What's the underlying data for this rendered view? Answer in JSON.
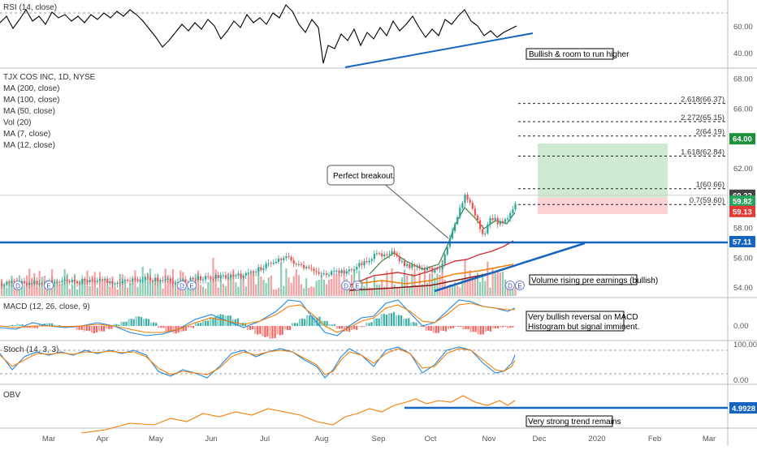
{
  "chart_data": [
    {
      "type": "line",
      "title": "RSI (14, close)",
      "y_ticks": [
        "60.00",
        "40.00"
      ],
      "ylim": [
        30,
        80
      ],
      "reference_line": 70,
      "trendline": {
        "name": "",
        "note": "rising support line"
      }
    },
    {
      "type": "candlestick",
      "title": "TJX COS INC, 1D, NYSE",
      "legend": [
        "MA (200, close)",
        "MA (100, close)",
        "MA (50, close)",
        "Vol (20)",
        "MA (7, close)",
        "MA (12, close)"
      ],
      "y_ticks": [
        "68.00",
        "66.00",
        "64.00",
        "62.00",
        "60.00",
        "58.00",
        "56.00",
        "54.00"
      ],
      "ylim": [
        53.2,
        69.2
      ],
      "resistance": 57.11,
      "price_badges": [
        {
          "label": "64.00",
          "value": 64.0,
          "color": "#1e8f3a"
        },
        {
          "label": "60.22",
          "value": 60.22,
          "color": "#444444"
        },
        {
          "label": "59.82",
          "value": 59.82,
          "color": "#26a65b"
        },
        {
          "label": "59.13",
          "value": 59.13,
          "color": "#e53935"
        },
        {
          "label": "57.11",
          "value": 57.11,
          "color": "#1565c0"
        }
      ],
      "fib_levels": [
        {
          "label": "2.618(66.37)",
          "value": 66.37
        },
        {
          "label": "2.272(65.15)",
          "value": 65.15
        },
        {
          "label": "2(64.19)",
          "value": 64.19
        },
        {
          "label": "1.618(62.84)",
          "value": 62.84
        },
        {
          "label": "1(60.66)",
          "value": 60.66
        },
        {
          "label": "0.7(59.60)",
          "value": 59.6
        }
      ],
      "position": {
        "target": 64.0,
        "entry": 60.22,
        "stop": 59.13
      },
      "annotations": [
        "Perfect breakout.",
        "Volume rising pre earnings (bullish)"
      ],
      "event_markers": [
        "D",
        "E",
        "D",
        "E",
        "D",
        "E",
        "D",
        "E"
      ]
    },
    {
      "type": "bar",
      "title": "MACD (12, 26, close, 9)",
      "y_ticks": [
        "0.00"
      ],
      "annotation": [
        "Very bullish reversal on MACD",
        "Histogram but signal imminent."
      ]
    },
    {
      "type": "line",
      "title": "Stoch (14, 3, 3)",
      "y_ticks": [
        "100.00",
        "0.00"
      ],
      "ylim": [
        0,
        100
      ]
    },
    {
      "type": "line",
      "title": "OBV",
      "badge": "4.9928",
      "annotation": "Very strong trend remains"
    }
  ],
  "x_axis": {
    "labels": [
      "Mar",
      "Apr",
      "May",
      "Jun",
      "Jul",
      "Aug",
      "Sep",
      "Oct",
      "Nov",
      "Dec",
      "2020",
      "Feb",
      "Mar"
    ]
  },
  "colors": {
    "up": "#26a69a",
    "down": "#ef5350",
    "trend_blue": "#1565c0",
    "orange": "#f57c00",
    "blue_line": "#1e88e5",
    "ma_red": "#d32f2f",
    "ma_maroon": "#8b1a1a"
  }
}
